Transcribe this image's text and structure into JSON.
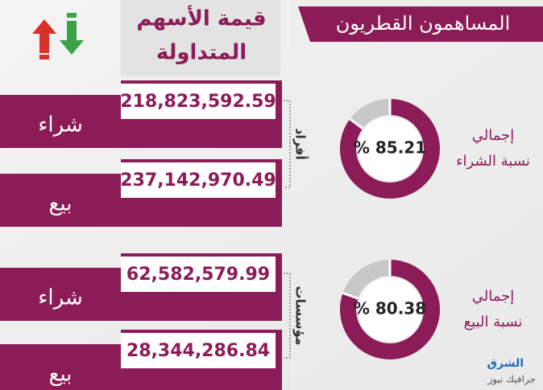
{
  "header": {
    "title": "المساهمون القطريون",
    "column_title_lines": [
      "قيمة الأسهم",
      "المتداولة"
    ]
  },
  "groups": [
    {
      "label": "أفراد",
      "rows": [
        {
          "type": "شراء",
          "value": "218,823,592.59"
        },
        {
          "type": "بيع",
          "value": "237,142,970.49"
        }
      ]
    },
    {
      "label": "مؤسسات",
      "rows": [
        {
          "type": "شراء",
          "value": "62,582,579.99"
        },
        {
          "type": "بيع",
          "value": "28,344,286.84"
        }
      ]
    }
  ],
  "totals": [
    {
      "label_lines": [
        "إجمالي",
        "نسبة الشراء"
      ],
      "percent": 85.21,
      "percent_label": "% 85.21"
    },
    {
      "label_lines": [
        "إجمالي",
        "نسبة البيع"
      ],
      "percent": 80.38,
      "percent_label": "% 80.38"
    }
  ],
  "logo": {
    "name": "الشرق",
    "subtitle": "جرافيك نيوز"
  }
}
